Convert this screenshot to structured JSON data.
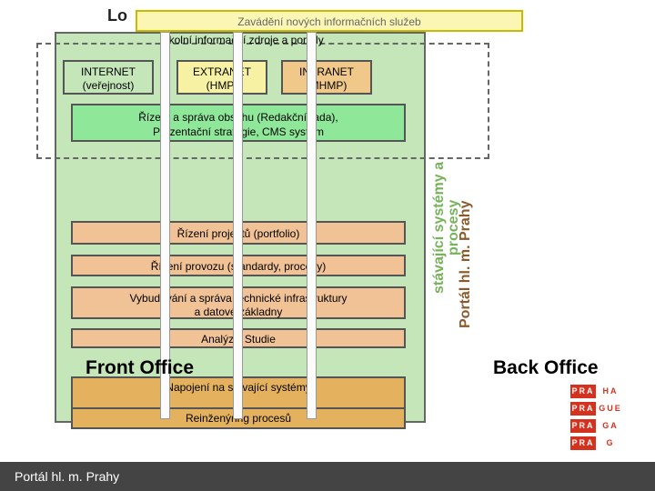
{
  "header": {
    "lo": "Lo"
  },
  "bars": {
    "top": "Zavádění nových informačních služeb",
    "sub": "Okolní informační zdroje a portály"
  },
  "tabs": {
    "t1a": "INTERNET",
    "t1b": "(veřejnost)",
    "t2a": "EXTRANET",
    "t2b": "(HMP)",
    "t3a": "INTRANET",
    "t3b": "(MHMP)"
  },
  "rows": {
    "r1a": "Řízení a správa obsahu (Redakční rada),",
    "r1b": "Prezentační strategie, CMS systém",
    "r2": "Řízení projektů (portfolio)",
    "r3": "Řízení provozu (standardy, procesy)",
    "r4a": "Vybudování a správa technické infrastruktury",
    "r4b": "a datové základny",
    "r5": "Analýzy, Studie",
    "r6": "Napojení na stávající systémy",
    "r7": "Reinženýring procesů"
  },
  "labels": {
    "front": "Front Office",
    "back": "Back Office",
    "vgreen1": "stávající systémy",
    "vgreen2": "a procesy",
    "vbrown": "Portál hl. m. Prahy"
  },
  "footer": "Portál hl. m. Prahy",
  "logo": {
    "a": "PRA",
    "b": "HA",
    "c": "PRA",
    "d": "GUE",
    "e": "PRA",
    "f": "GA",
    "g": "PRA",
    "h": "G"
  },
  "colors": {
    "greenPanel": "#c4e6b8",
    "greenRow": "#8fe89a",
    "orangeRow": "#f0c296",
    "brownRow": "#e4b25f",
    "yellowBar": "#fbf6b3",
    "pillar": "#fbfbfb",
    "footer": "#444444",
    "logoRed": "#d4321e"
  }
}
